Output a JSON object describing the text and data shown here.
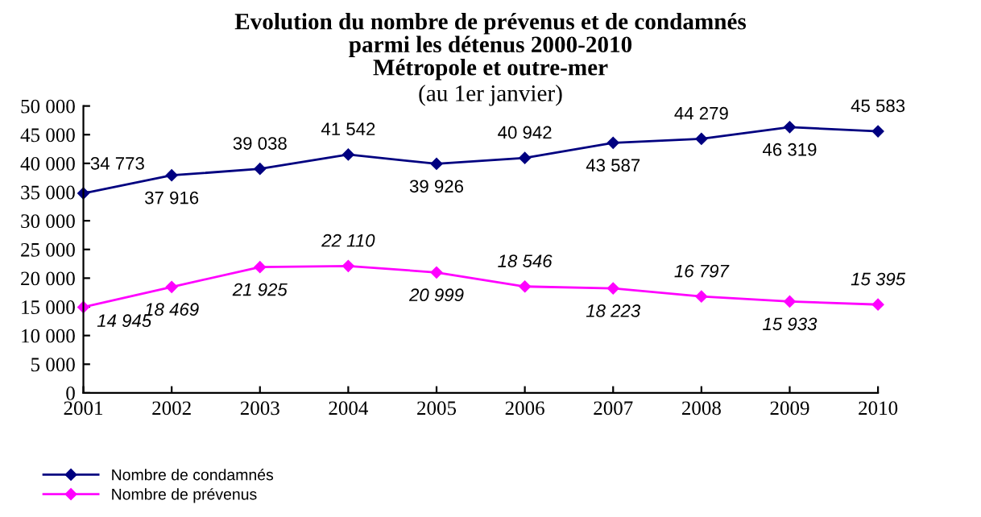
{
  "chart_data": {
    "type": "line",
    "title": "Evolution du nombre de prévenus et de condamnés\nparmi les détenus 2000-2010\nMétropole et outre-mer",
    "subtitle": "(au 1er janvier)",
    "categories": [
      "2001",
      "2002",
      "2003",
      "2004",
      "2005",
      "2006",
      "2007",
      "2008",
      "2009",
      "2010"
    ],
    "series": [
      {
        "name": "Nombre de condamnés",
        "color": "#000080",
        "values": [
          34773,
          37916,
          39038,
          41542,
          39926,
          40942,
          43587,
          44279,
          46319,
          45583
        ],
        "value_labels": [
          "34 773",
          "37 916",
          "39 038",
          "41 542",
          "39 926",
          "40 942",
          "43 587",
          "44 279",
          "46 319",
          "45 583"
        ]
      },
      {
        "name": "Nombre de prévenus",
        "color": "#ff00ff",
        "values": [
          14945,
          18469,
          21925,
          22110,
          20999,
          18546,
          18223,
          16797,
          15933,
          15395
        ],
        "value_labels": [
          "14 945",
          "18 469",
          "21 925",
          "22 110",
          "20 999",
          "18 546",
          "18 223",
          "16 797",
          "15 933",
          "15 395"
        ]
      }
    ],
    "ylim": [
      0,
      50000
    ],
    "yticks": [
      0,
      {
        "value": 5000,
        "label": "5 000"
      },
      {
        "value": 10000,
        "label": "10 000"
      },
      {
        "value": 15000,
        "label": "15 000"
      },
      {
        "value": 20000,
        "label": "20 000"
      },
      {
        "value": 25000,
        "label": "25 000"
      },
      {
        "value": 30000,
        "label": "30 000"
      },
      {
        "value": 35000,
        "label": "35 000"
      },
      {
        "value": 40000,
        "label": "40 000"
      },
      {
        "value": 45000,
        "label": "45 000"
      },
      {
        "value": 50000,
        "label": "50 000"
      }
    ],
    "grid": false,
    "legend": "bottom left",
    "marker": "diamond",
    "line_style": "solid"
  }
}
